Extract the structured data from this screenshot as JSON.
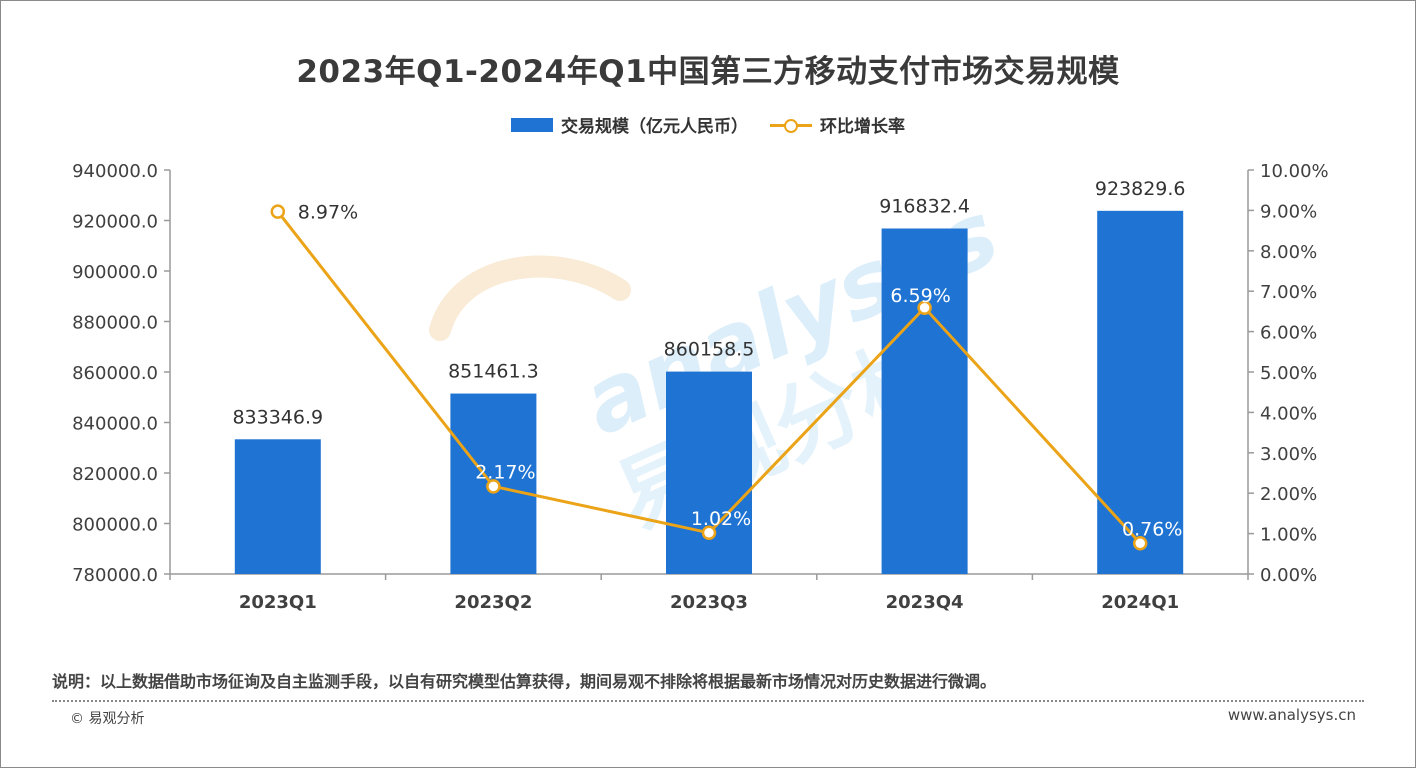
{
  "title": "2023年Q1-2024年Q1中国第三方移动支付市场交易规模",
  "legend": {
    "bar_label": "交易规模（亿元人民币）",
    "line_label": "环比增长率"
  },
  "colors": {
    "bar": "#1f73d2",
    "line": "#eba317",
    "axis_text": "#404040",
    "axis_line": "#9a9a9a"
  },
  "watermark": {
    "latin": "analysys",
    "chinese": "易观分析"
  },
  "note": "说明：以上数据借助市场征询及自主监测手段，以自有研究模型估算获得，期间易观不排除将根据最新市场情况对历史数据进行微调。",
  "copyright": "© 易观分析",
  "website": "www.analysys.cn",
  "chart_data": {
    "type": "bar",
    "title": "2023年Q1-2024年Q1中国第三方移动支付市场交易规模",
    "categories": [
      "2023Q1",
      "2023Q2",
      "2023Q3",
      "2023Q4",
      "2024Q1"
    ],
    "series": [
      {
        "name": "交易规模（亿元人民币）",
        "type": "bar",
        "axis": "left",
        "values": [
          833346.9,
          851461.3,
          860158.5,
          916832.4,
          923829.6
        ],
        "labels": [
          "833346.9",
          "851461.3",
          "860158.5",
          "916832.4",
          "923829.6"
        ]
      },
      {
        "name": "环比增长率",
        "type": "line",
        "axis": "right",
        "values": [
          8.97,
          2.17,
          1.02,
          6.59,
          0.76
        ],
        "labels": [
          "8.97%",
          "2.17%",
          "1.02%",
          "6.59%",
          "0.76%"
        ]
      }
    ],
    "y_left": {
      "min": 780000,
      "max": 940000,
      "step": 20000,
      "ticks": [
        "780000.0",
        "800000.0",
        "820000.0",
        "840000.0",
        "860000.0",
        "880000.0",
        "900000.0",
        "920000.0",
        "940000.0"
      ]
    },
    "y_right": {
      "min": 0,
      "max": 10,
      "step": 1,
      "ticks": [
        "0.00%",
        "1.00%",
        "2.00%",
        "3.00%",
        "4.00%",
        "5.00%",
        "6.00%",
        "7.00%",
        "8.00%",
        "9.00%",
        "10.00%"
      ]
    },
    "grid": false,
    "legend_position": "top-center"
  }
}
